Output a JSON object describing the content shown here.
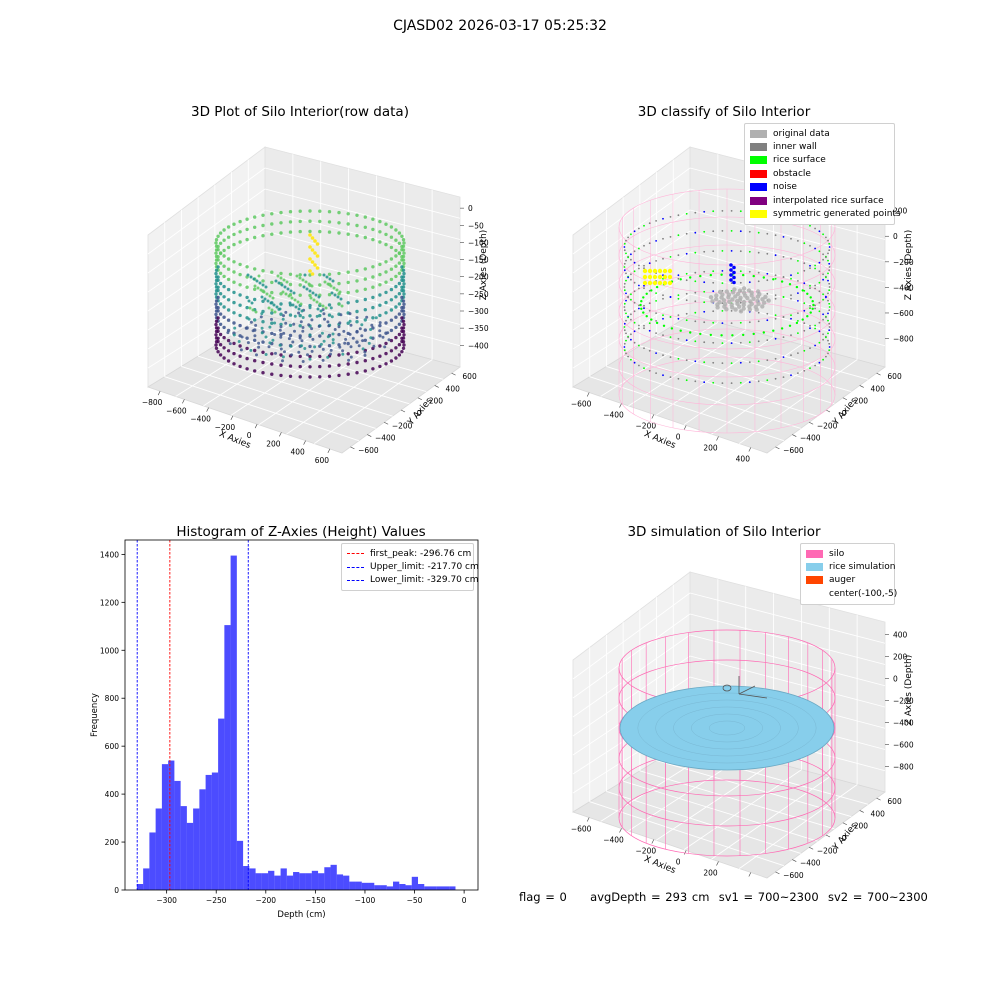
{
  "figure": {
    "suptitle": "CJASD02 2026-03-17 05:25:32"
  },
  "panel_tl": {
    "title": "3D Plot of Silo Interior(row data)",
    "xlabel": "X Axies",
    "ylabel": "Y Axies",
    "zlabel": "Z Axies (Depth)",
    "x_ticks": [
      "−800",
      "−600",
      "−400",
      "−200",
      "0",
      "200",
      "400",
      "600"
    ],
    "y_ticks": [
      "600",
      "400",
      "200",
      "0",
      "−200",
      "−400",
      "−600"
    ],
    "z_ticks": [
      "0",
      "−50",
      "−100",
      "−150",
      "−200",
      "−250",
      "−300",
      "−350",
      "−400"
    ],
    "colormap": [
      "#440154",
      "#3b528b",
      "#21918c",
      "#5ec962",
      "#fde725"
    ]
  },
  "panel_tr": {
    "title": "3D classify of Silo Interior",
    "xlabel": "X Axies",
    "ylabel": "Y Axies",
    "zlabel": "Z Axies (Depth)",
    "x_ticks": [
      "−600",
      "−400",
      "−200",
      "0",
      "200",
      "400"
    ],
    "y_ticks": [
      "600",
      "400",
      "200",
      "0",
      "−200",
      "−400",
      "−600"
    ],
    "z_ticks": [
      "200",
      "0",
      "−200",
      "−400",
      "−600",
      "−800"
    ],
    "legend": [
      {
        "label": "original data",
        "color": "#b0b0b0"
      },
      {
        "label": "inner wall",
        "color": "#808080"
      },
      {
        "label": "rice surface",
        "color": "#00ff00"
      },
      {
        "label": "obstacle",
        "color": "#ff0000"
      },
      {
        "label": "noise",
        "color": "#0000ff"
      },
      {
        "label": "interpolated rice surface",
        "color": "#800080"
      },
      {
        "label": "symmetric generated points",
        "color": "#ffff00"
      }
    ]
  },
  "panel_bl": {
    "title": "Histogram of Z-Axies (Height) Values",
    "legend": [
      {
        "label": "first_peak: -296.76 cm",
        "color": "#ff0000"
      },
      {
        "label": "Upper_limit: -217.70 cm",
        "color": "#0000ff"
      },
      {
        "label": "Lower_limit: -329.70 cm",
        "color": "#0000ff"
      }
    ]
  },
  "panel_br": {
    "title": "3D simulation of Silo Interior",
    "xlabel": "X Axies",
    "ylabel": "Y Axies",
    "zlabel": "Z Axies (Depth)",
    "x_ticks": [
      "−600",
      "−400",
      "−200",
      "0",
      "200",
      "400"
    ],
    "y_ticks": [
      "600",
      "400",
      "200",
      "0",
      "−200",
      "−400",
      "−600"
    ],
    "z_ticks": [
      "400",
      "200",
      "0",
      "−200",
      "−400",
      "−600",
      "−800"
    ],
    "legend": [
      {
        "label": "silo",
        "color": "#ff69b4"
      },
      {
        "label": "rice simulation",
        "color": "#87ceeb"
      },
      {
        "label": "auger",
        "color": "#ff4500"
      },
      {
        "label": "center(-100,-5)",
        "color": ""
      }
    ]
  },
  "status": {
    "flag": "flag = 0",
    "avg_depth": "avgDepth = 293 cm",
    "sv1": "sv1 = 700~2300",
    "sv2": "sv2 = 700~2300"
  },
  "chart_data": [
    {
      "type": "scatter",
      "title": "3D Plot of Silo Interior(row data)",
      "xlabel": "X Axies",
      "ylabel": "Y Axies",
      "zlabel": "Z Axies (Depth)",
      "xlim": [
        -900,
        600
      ],
      "ylim": [
        -700,
        700
      ],
      "zlim": [
        -420,
        0
      ],
      "colormap": "viridis"
    },
    {
      "type": "scatter",
      "title": "3D classify of Silo Interior",
      "xlabel": "X Axies",
      "ylabel": "Y Axies",
      "zlabel": "Z Axies (Depth)",
      "xlim": [
        -700,
        500
      ],
      "ylim": [
        -700,
        700
      ],
      "zlim": [
        -900,
        300
      ],
      "series": [
        {
          "name": "original data"
        },
        {
          "name": "inner wall"
        },
        {
          "name": "rice surface"
        },
        {
          "name": "obstacle"
        },
        {
          "name": "noise"
        },
        {
          "name": "interpolated rice surface"
        },
        {
          "name": "symmetric generated points"
        }
      ]
    },
    {
      "type": "bar",
      "title": "Histogram of Z-Axies (Height) Values",
      "xlabel": "Depth (cm)",
      "ylabel": "Frequency",
      "xlim": [
        -342,
        14
      ],
      "ylim": [
        0,
        1460
      ],
      "x_ticks": [
        -300,
        -250,
        -200,
        -150,
        -100,
        -50,
        0
      ],
      "y_ticks": [
        0,
        200,
        400,
        600,
        800,
        1000,
        1200,
        1400
      ],
      "bin_start": -330,
      "bin_width": 6.3,
      "values": [
        25,
        90,
        240,
        340,
        525,
        540,
        455,
        350,
        280,
        340,
        420,
        480,
        490,
        715,
        1105,
        1395,
        205,
        100,
        90,
        70,
        70,
        80,
        60,
        90,
        60,
        75,
        70,
        70,
        80,
        70,
        95,
        105,
        65,
        60,
        35,
        35,
        30,
        30,
        20,
        20,
        15,
        35,
        25,
        20,
        55,
        25,
        15,
        15,
        15,
        15,
        15
      ],
      "bar_color": "#0000ff",
      "vlines": [
        {
          "name": "first_peak: -296.76 cm",
          "x": -296.76,
          "color": "#ff0000"
        },
        {
          "name": "Upper_limit: -217.70 cm",
          "x": -217.7,
          "color": "#0000ff"
        },
        {
          "name": "Lower_limit: -329.70 cm",
          "x": -329.7,
          "color": "#0000ff"
        }
      ]
    },
    {
      "type": "scatter",
      "title": "3D simulation of Silo Interior",
      "xlabel": "X Axies",
      "ylabel": "Y Axies",
      "zlabel": "Z Axies (Depth)",
      "xlim": [
        -700,
        500
      ],
      "ylim": [
        -700,
        700
      ],
      "zlim": [
        -900,
        500
      ],
      "series": [
        {
          "name": "silo"
        },
        {
          "name": "rice simulation"
        },
        {
          "name": "auger"
        }
      ],
      "center": "center(-100,-5)"
    }
  ]
}
